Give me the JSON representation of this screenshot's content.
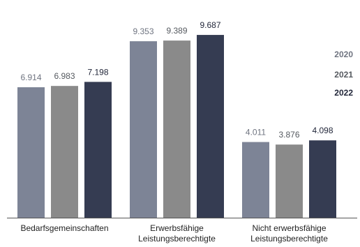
{
  "chart_data": {
    "type": "bar",
    "categories": [
      [
        "Bedarfsgemeinschaften"
      ],
      [
        "Erwerbsfähige",
        "Leistungsberechtigte"
      ],
      [
        "Nicht erwerbsfähige",
        "Leistungsberechtigte"
      ]
    ],
    "series": [
      {
        "name": "2020",
        "color": "#7d8496",
        "label_color": "#6f7480",
        "values": [
          6914,
          9353,
          4011
        ],
        "labels": [
          "6.914",
          "9.353",
          "4.011"
        ]
      },
      {
        "name": "2021",
        "color": "#8a8a8a",
        "label_color": "#55595f",
        "values": [
          6983,
          9389,
          3876
        ],
        "labels": [
          "6.983",
          "9.389",
          "3.876"
        ]
      },
      {
        "name": "2022",
        "color": "#353c52",
        "label_color": "#1f2437",
        "values": [
          7198,
          9687,
          4098
        ],
        "labels": [
          "7.198",
          "9.687",
          "4.098"
        ]
      }
    ],
    "ylim": [
      0,
      10000
    ],
    "grid": false,
    "legend": "right",
    "title": "",
    "xlabel": "",
    "ylabel": ""
  }
}
